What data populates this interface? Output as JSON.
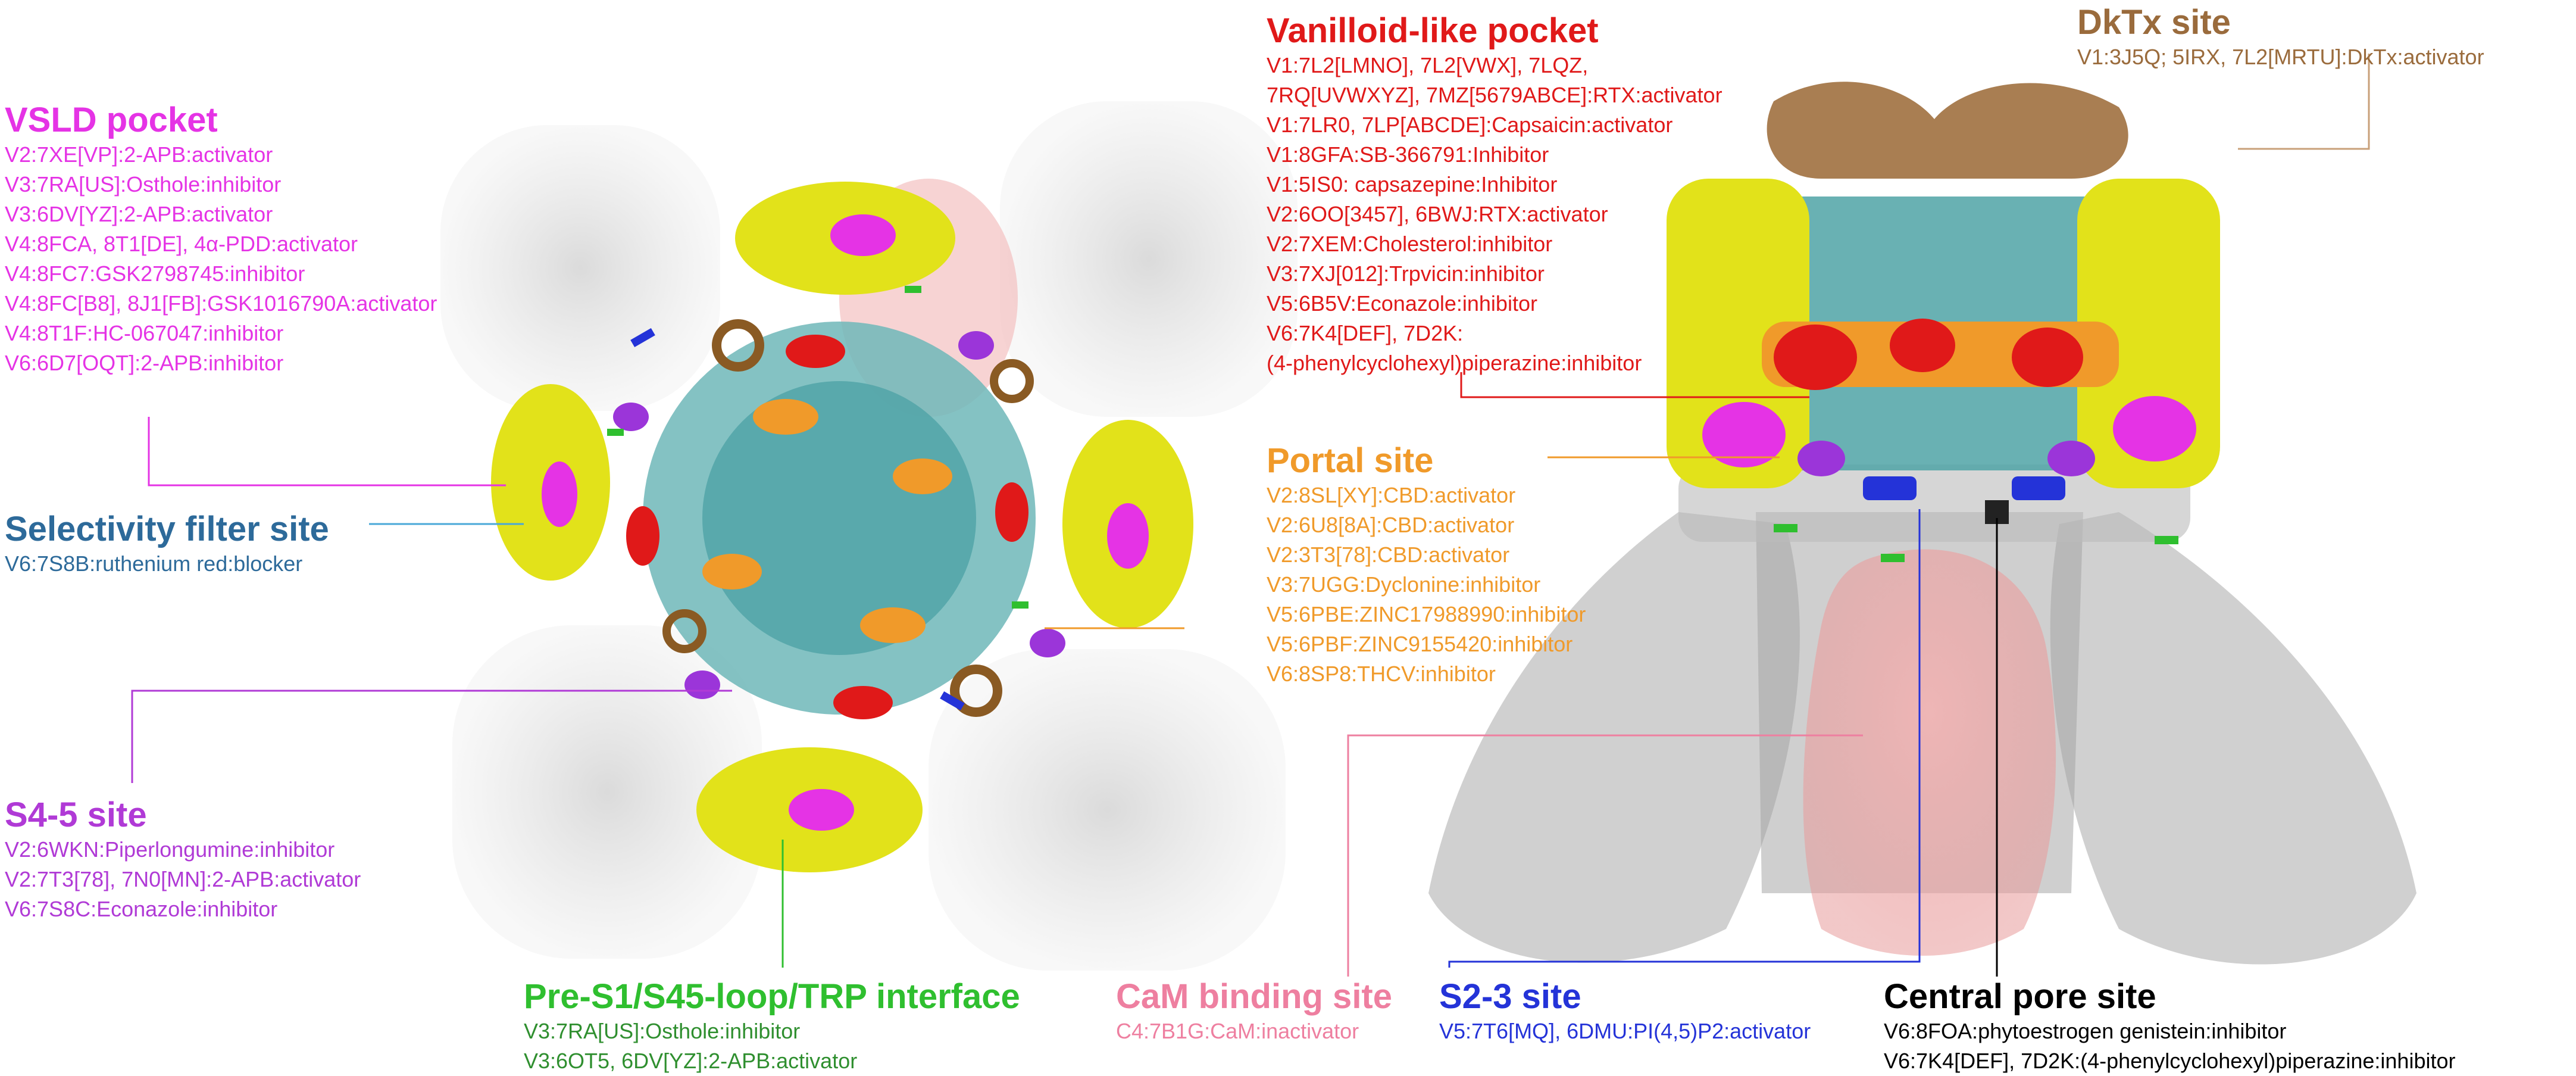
{
  "colors": {
    "vsld": "#e533e5",
    "selectivity": "#2d6a9a",
    "s45": "#b03ad6",
    "pre_s1": "#2fbf2f",
    "pre_s1_text": "#2f8f2f",
    "vanilloid": "#e01919",
    "portal": "#f09a2a",
    "dktx": "#9a6b3c",
    "cam": "#ee7fa0",
    "s23": "#2433d8",
    "central": "#000000",
    "helix_yellow": "#e2e21a",
    "helix_teal": "#43a6a8",
    "helix_gray": "#9a9a9a",
    "cam_blob": "#eea4a4"
  },
  "vsld": {
    "title": "VSLD pocket",
    "lines": [
      "V2:7XE[VP]:2-APB:activator",
      "V3:7RA[US]:Osthole:inhibitor",
      "V3:6DV[YZ]:2-APB:activator",
      "V4:8FCA, 8T1[DE], 4α-PDD:activator",
      "V4:8FC7:GSK2798745:inhibitor",
      "V4:8FC[B8], 8J1[FB]:GSK1016790A:activator",
      "V4:8T1F:HC-067047:inhibitor",
      "V6:6D7[OQT]:2-APB:inhibitor"
    ]
  },
  "selectivity": {
    "title": "Selectivity filter site",
    "lines": [
      "V6:7S8B:ruthenium red:blocker"
    ]
  },
  "s45": {
    "title": "S4-5 site",
    "lines": [
      "V2:6WKN:Piperlongumine:inhibitor",
      "V2:7T3[78], 7N0[MN]:2-APB:activator",
      "V6:7S8C:Econazole:inhibitor"
    ]
  },
  "pre_s1": {
    "title": "Pre-S1/S45-loop/TRP interface",
    "lines": [
      "V3:7RA[US]:Osthole:inhibitor",
      "V3:6OT5, 6DV[YZ]:2-APB:activator"
    ]
  },
  "vanilloid": {
    "title": "Vanilloid-like pocket",
    "lines": [
      "V1:7L2[LMNO], 7L2[VWX], 7LQZ,",
      "7RQ[UVWXYZ], 7MZ[5679ABCE]:RTX:activator",
      "V1:7LR0, 7LP[ABCDE]:Capsaicin:activator",
      "V1:8GFA:SB-366791:Inhibitor",
      "V1:5IS0: capsazepine:Inhibitor",
      "V2:6OO[3457], 6BWJ:RTX:activator",
      "V2:7XEM:Cholesterol:inhibitor",
      "V3:7XJ[012]:Trpvicin:inhibitor",
      "V5:6B5V:Econazole:inhibitor",
      "V6:7K4[DEF], 7D2K:",
      "(4-phenylcyclohexyl)piperazine:inhibitor"
    ]
  },
  "portal": {
    "title": "Portal site",
    "lines": [
      "V2:8SL[XY]:CBD:activator",
      "V2:6U8[8A]:CBD:activator",
      "V2:3T3[78]:CBD:activator",
      "V3:7UGG:Dyclonine:inhibitor",
      "V5:6PBE:ZINC17988990:inhibitor",
      "V5:6PBF:ZINC9155420:inhibitor",
      "V6:8SP8:THCV:inhibitor"
    ]
  },
  "dktx": {
    "title": "DkTx site",
    "lines": [
      "V1:3J5Q; 5IRX, 7L2[MRTU]:DkTx:activator"
    ]
  },
  "cam": {
    "title": "CaM binding site",
    "lines": [
      "C4:7B1G:CaM:inactivator"
    ]
  },
  "s23": {
    "title": "S2-3 site",
    "lines": [
      "V5:7T6[MQ], 6DMU:PI(4,5)P2:activator"
    ]
  },
  "central": {
    "title": "Central pore site",
    "lines": [
      "V6:8FOA:phytoestrogen genistein:inhibitor",
      "V6:7K4[DEF], 7D2K:(4-phenylcyclohexyl)piperazine:inhibitor"
    ]
  }
}
